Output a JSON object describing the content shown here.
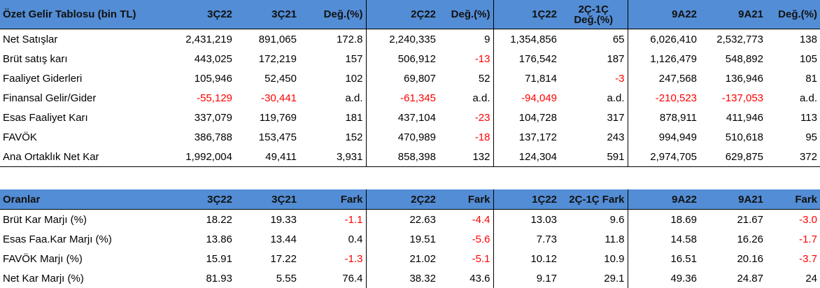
{
  "income": {
    "headers": [
      "Özet Gelir Tablosu (bin TL)",
      "3Ç22",
      "3Ç21",
      "Değ.(%)",
      "2Ç22",
      "Değ.(%)",
      "1Ç22",
      "2Ç-1Ç\nDeğ.(%)",
      "9A22",
      "9A21",
      "Değ.(%)"
    ],
    "rows": [
      {
        "label": "Net Satışlar",
        "values": [
          "2,431,219",
          "891,065",
          "172.8",
          "2,240,335",
          "9",
          "1,354,856",
          "65",
          "6,026,410",
          "2,532,773",
          "138"
        ]
      },
      {
        "label": "Brüt satış karı",
        "values": [
          "443,025",
          "172,219",
          "157",
          "506,912",
          "-13",
          "176,542",
          "187",
          "1,126,479",
          "548,892",
          "105"
        ]
      },
      {
        "label": "Faaliyet Giderleri",
        "values": [
          "105,946",
          "52,450",
          "102",
          "69,807",
          "52",
          "71,814",
          "-3",
          "247,568",
          "136,946",
          "81"
        ]
      },
      {
        "label": "Finansal Gelir/Gider",
        "values": [
          "-55,129",
          "-30,441",
          "a.d.",
          "-61,345",
          "a.d.",
          "-94,049",
          "a.d.",
          "-210,523",
          "-137,053",
          "a.d."
        ]
      },
      {
        "label": "Esas Faaliyet Karı",
        "values": [
          "337,079",
          "119,769",
          "181",
          "437,104",
          "-23",
          "104,728",
          "317",
          "878,911",
          "411,946",
          "113"
        ]
      },
      {
        "label": "FAVÖK",
        "values": [
          "386,788",
          "153,475",
          "152",
          "470,989",
          "-18",
          "137,172",
          "243",
          "994,949",
          "510,618",
          "95"
        ]
      },
      {
        "label": "Ana Ortaklık Net Kar",
        "values": [
          "1,992,004",
          "49,411",
          "3,931",
          "858,398",
          "132",
          "124,304",
          "591",
          "2,974,705",
          "629,875",
          "372"
        ]
      }
    ]
  },
  "ratios": {
    "headers": [
      "Oranlar",
      "3Ç22",
      "3Ç21",
      "Fark",
      "2Ç22",
      "Fark",
      "1Ç22",
      "2Ç-1Ç Fark",
      "9A22",
      "9A21",
      "Fark"
    ],
    "rows": [
      {
        "label": "Brüt Kar Marjı (%)",
        "values": [
          "18.22",
          "19.33",
          "-1.1",
          "22.63",
          "-4.4",
          "13.03",
          "9.6",
          "18.69",
          "21.67",
          "-3.0"
        ]
      },
      {
        "label": "Esas Faa.Kar Marjı (%)",
        "values": [
          "13.86",
          "13.44",
          "0.4",
          "19.51",
          "-5.6",
          "7.73",
          "11.8",
          "14.58",
          "16.26",
          "-1.7"
        ]
      },
      {
        "label": "FAVÖK Marjı (%)",
        "values": [
          "15.91",
          "17.22",
          "-1.3",
          "21.02",
          "-5.1",
          "10.12",
          "10.9",
          "16.51",
          "20.16",
          "-3.7"
        ]
      },
      {
        "label": "Net Kar Marjı (%)",
        "values": [
          "81.93",
          "5.55",
          "76.4",
          "38.32",
          "43.6",
          "9.17",
          "29.1",
          "49.36",
          "24.87",
          "24"
        ]
      }
    ]
  },
  "colors": {
    "header_bg": "#538dd5",
    "negative": "#ff0000"
  }
}
